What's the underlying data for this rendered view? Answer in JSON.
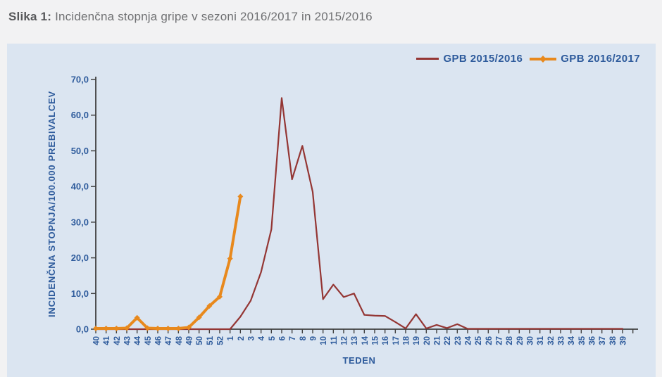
{
  "caption": {
    "prefix": "Slika 1:",
    "text": " Incidenčna stopnja gripe v sezoni 2016/2017 in 2015/2016"
  },
  "colors": {
    "page_background": "#f2f2f3",
    "panel_background": "#dbe5f1",
    "axis": "#404040",
    "chart_text_blue": "#2e5b9c",
    "caption_gray": "#6f7072",
    "series_2015_2016": "#943634",
    "series_2016_2017": "#e8891d"
  },
  "chart_data": {
    "type": "line",
    "title": "Incidenčna stopnja gripe v sezoni 2016/2017 in 2015/2016",
    "xlabel": "TEDEN",
    "ylabel": "INCIDENČNA STOPNJA/100.000 PREBIVALCEV",
    "ylim": [
      0,
      70
    ],
    "y_tick_step": 10,
    "y_tick_labels": [
      "0,0",
      "10,0",
      "20,0",
      "30,0",
      "40,0",
      "50,0",
      "60,0",
      "70,0"
    ],
    "grid": false,
    "legend_position": "top-right",
    "categories": [
      "40",
      "41",
      "42",
      "43",
      "44",
      "45",
      "46",
      "47",
      "48",
      "49",
      "50",
      "51",
      "52",
      "1",
      "2",
      "3",
      "4",
      "5",
      "6",
      "7",
      "8",
      "9",
      "10",
      "11",
      "12",
      "13",
      "14",
      "15",
      "16",
      "17",
      "18",
      "19",
      "20",
      "21",
      "22",
      "23",
      "24",
      "25",
      "26",
      "27",
      "28",
      "29",
      "30",
      "31",
      "32",
      "33",
      "34",
      "35",
      "36",
      "37",
      "38",
      "39"
    ],
    "series": [
      {
        "name": "GPB 2015/2016",
        "color": "#943634",
        "marker": false,
        "line_width": 2.2,
        "values": [
          0,
          0,
          0,
          0,
          0,
          0,
          0,
          0,
          0,
          0,
          0,
          0,
          0,
          0,
          3.5,
          8,
          16,
          28,
          64.8,
          42,
          51.4,
          38.5,
          8.4,
          12.5,
          9,
          10,
          4,
          3.8,
          3.7,
          2,
          0.2,
          4.2,
          0.2,
          1.2,
          0.3,
          1.4,
          0.1,
          0.1,
          0.1,
          0.1,
          0.1,
          0.1,
          0.1,
          0.1,
          0.1,
          0.1,
          0.1,
          0.1,
          0.1,
          0.1,
          0.1,
          0.1
        ]
      },
      {
        "name": "GPB 2016/2017",
        "color": "#e8891d",
        "marker": true,
        "line_width": 4,
        "values": [
          0.2,
          0.2,
          0.2,
          0.3,
          3.2,
          0.3,
          0.2,
          0.2,
          0.2,
          0.5,
          3.3,
          6.5,
          9.1,
          19.8,
          37.2,
          null,
          null,
          null,
          null,
          null,
          null,
          null,
          null,
          null,
          null,
          null,
          null,
          null,
          null,
          null,
          null,
          null,
          null,
          null,
          null,
          null,
          null,
          null,
          null,
          null,
          null,
          null,
          null,
          null,
          null,
          null,
          null,
          null,
          null,
          null,
          null,
          null
        ]
      }
    ]
  }
}
